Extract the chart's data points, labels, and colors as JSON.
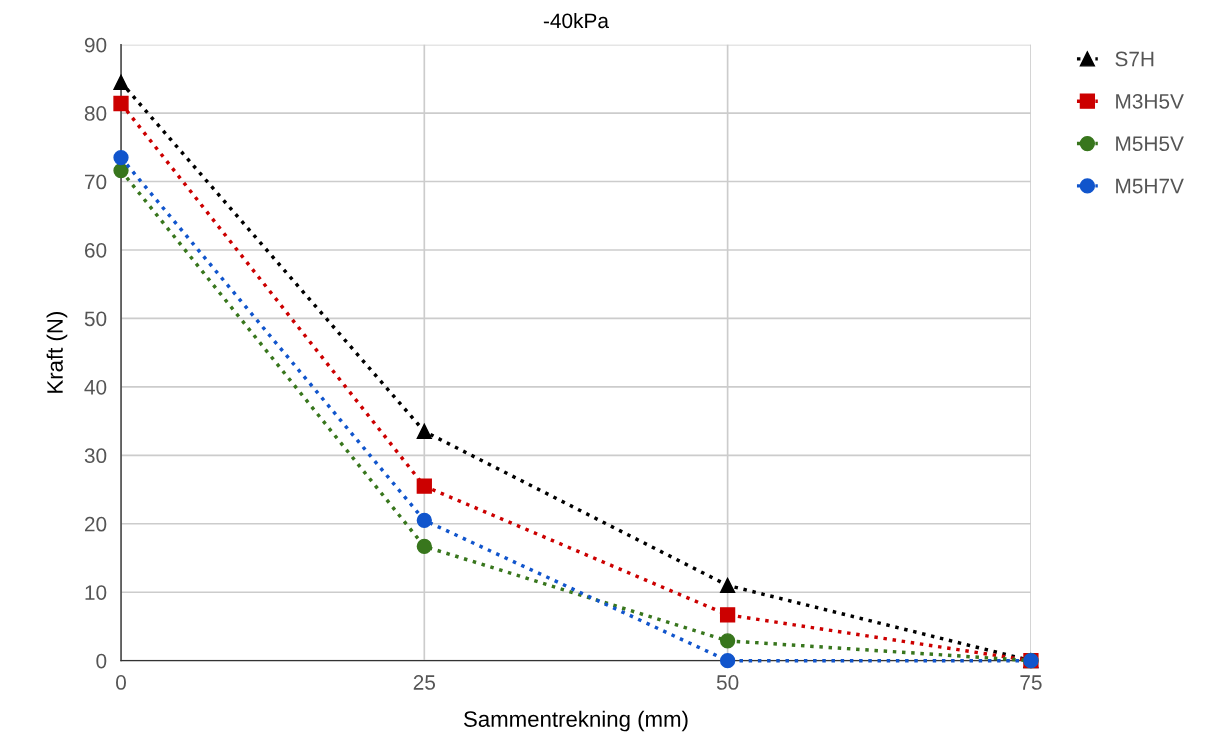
{
  "chart_data": {
    "type": "line",
    "title": "-40kPa",
    "xlabel": "Sammentrekning (mm)",
    "ylabel": "Kraft (N)",
    "x": [
      0,
      25,
      50,
      75
    ],
    "series": [
      {
        "name": "S7H",
        "color": "#000000",
        "marker": "triangle",
        "values": [
          84.5,
          33.5,
          11.0,
          0
        ]
      },
      {
        "name": "M3H5V",
        "color": "#cc0000",
        "marker": "square",
        "values": [
          81.4,
          25.5,
          6.7,
          0
        ]
      },
      {
        "name": "M5H5V",
        "color": "#38761d",
        "marker": "circle",
        "values": [
          71.6,
          16.7,
          2.9,
          0
        ]
      },
      {
        "name": "M5H7V",
        "color": "#1155cc",
        "marker": "circle",
        "values": [
          73.5,
          20.5,
          0,
          0
        ]
      }
    ],
    "xlim": [
      0,
      75
    ],
    "xticks": [
      0,
      25,
      50,
      75
    ],
    "ylim": [
      0,
      90
    ],
    "yticks": [
      0,
      10,
      20,
      30,
      40,
      50,
      60,
      70,
      80,
      90
    ],
    "grid": true,
    "legend": "top right",
    "line_style": "dotted"
  }
}
